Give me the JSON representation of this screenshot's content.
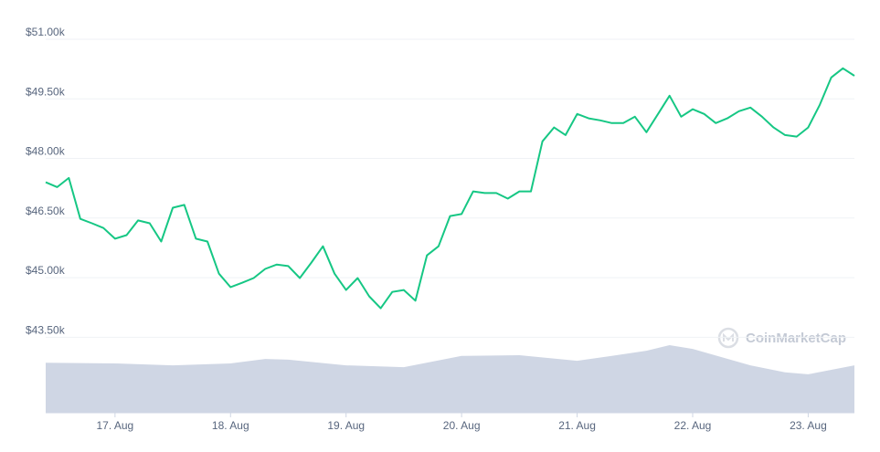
{
  "chart_data": {
    "type": "line",
    "xlim": [
      16.4,
      23.4
    ],
    "xticks": [
      {
        "value": 17,
        "label": "17. Aug"
      },
      {
        "value": 18,
        "label": "18. Aug"
      },
      {
        "value": 19,
        "label": "19. Aug"
      },
      {
        "value": 20,
        "label": "20. Aug"
      },
      {
        "value": 21,
        "label": "21. Aug"
      },
      {
        "value": 22,
        "label": "22. Aug"
      },
      {
        "value": 23,
        "label": "23. Aug"
      }
    ],
    "ylim": [
      41600,
      51000
    ],
    "yticks": [
      {
        "value": 51000,
        "label": "$51.00k"
      },
      {
        "value": 49500,
        "label": "$49.50k"
      },
      {
        "value": 48000,
        "label": "$48.00k"
      },
      {
        "value": 46500,
        "label": "$46.50k"
      },
      {
        "value": 45000,
        "label": "$45.00k"
      },
      {
        "value": 43500,
        "label": "$43.50k"
      }
    ],
    "y2lim": [
      0,
      100
    ],
    "grid": true,
    "watermark": "CoinMarketCap",
    "series": [
      {
        "color": "#16c784",
        "x": [
          16.4,
          16.5,
          16.6,
          16.7,
          16.8,
          16.9,
          17.0,
          17.1,
          17.2,
          17.3,
          17.4,
          17.5,
          17.6,
          17.7,
          17.8,
          17.9,
          18.0,
          18.1,
          18.2,
          18.3,
          18.4,
          18.5,
          18.6,
          18.7,
          18.8,
          18.9,
          19.0,
          19.1,
          19.2,
          19.3,
          19.4,
          19.5,
          19.6,
          19.7,
          19.8,
          19.9,
          20.0,
          20.1,
          20.2,
          20.3,
          20.4,
          20.5,
          20.6,
          20.7,
          20.8,
          20.9,
          21.0,
          21.1,
          21.2,
          21.3,
          21.4,
          21.5,
          21.6,
          21.7,
          21.8,
          21.9,
          22.0,
          22.1,
          22.2,
          22.3,
          22.4,
          22.5,
          22.6,
          22.7,
          22.8,
          22.9,
          23.0,
          23.1,
          23.2,
          23.3,
          23.4
        ],
        "values": [
          47400,
          47280,
          47510,
          46480,
          46370,
          46250,
          45980,
          46070,
          46440,
          46370,
          45910,
          46760,
          46830,
          45980,
          45910,
          45100,
          44760,
          44870,
          44990,
          45220,
          45330,
          45290,
          44990,
          45380,
          45790,
          45100,
          44690,
          44990,
          44530,
          44230,
          44640,
          44690,
          44420,
          45560,
          45790,
          46550,
          46600,
          47170,
          47130,
          47130,
          46990,
          47170,
          47170,
          48430,
          48780,
          48590,
          49120,
          49010,
          48960,
          48890,
          48890,
          49050,
          48660,
          49120,
          49580,
          49050,
          49240,
          49120,
          48890,
          49010,
          49190,
          49280,
          49050,
          48780,
          48590,
          48550,
          48780,
          49350,
          50040,
          50270,
          50080
        ]
      },
      {
        "color": "#cfd6e4",
        "axis": "y2",
        "x": [
          16.4,
          17.0,
          17.5,
          18.0,
          18.3,
          18.5,
          19.0,
          19.5,
          20.0,
          20.5,
          21.0,
          21.3,
          21.6,
          21.8,
          22.0,
          22.5,
          22.8,
          23.0,
          23.2,
          23.4
        ],
        "values": [
          13.4,
          13.2,
          12.7,
          13.2,
          14.4,
          14.2,
          12.7,
          12.2,
          15.2,
          15.4,
          13.9,
          15.2,
          16.6,
          18.1,
          17.1,
          12.7,
          10.8,
          10.3,
          11.5,
          12.7
        ]
      }
    ]
  }
}
